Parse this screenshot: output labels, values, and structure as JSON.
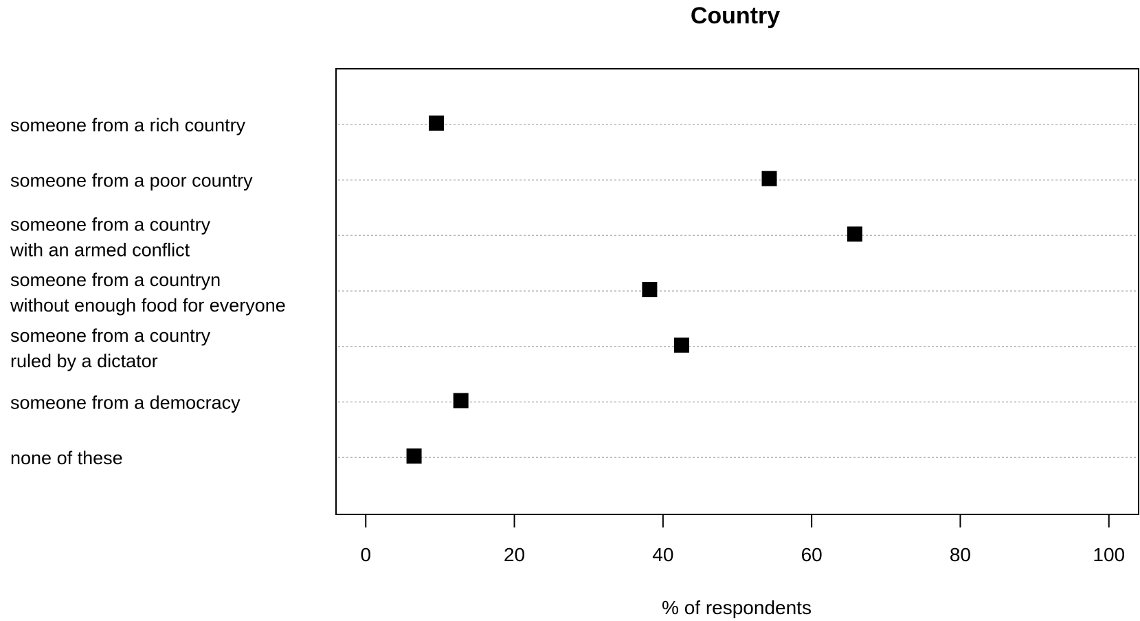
{
  "chart_data": {
    "type": "scatter",
    "title": "Country",
    "xlabel": "% of respondents",
    "ylabel": "",
    "xlim": [
      -4,
      104
    ],
    "xticks": [
      0,
      20,
      40,
      60,
      80,
      100
    ],
    "xtick_labels": [
      "0",
      "20",
      "40",
      "60",
      "80",
      "100"
    ],
    "grid": "horizontal dotted",
    "legend": "none",
    "marker": "filled-square",
    "marker_color": "#000000",
    "categories": [
      [
        "someone from a rich country"
      ],
      [
        "someone from a poor country"
      ],
      [
        "someone from a country",
        "with an armed conflict"
      ],
      [
        "someone from a countryn",
        "without enough food for everyone"
      ],
      [
        "someone from a country",
        "ruled by a dictator"
      ],
      [
        "someone from a democracy"
      ],
      [
        "none of these"
      ]
    ],
    "values": [
      9.5,
      54.3,
      65.8,
      38.2,
      42.5,
      12.8,
      6.5
    ]
  }
}
